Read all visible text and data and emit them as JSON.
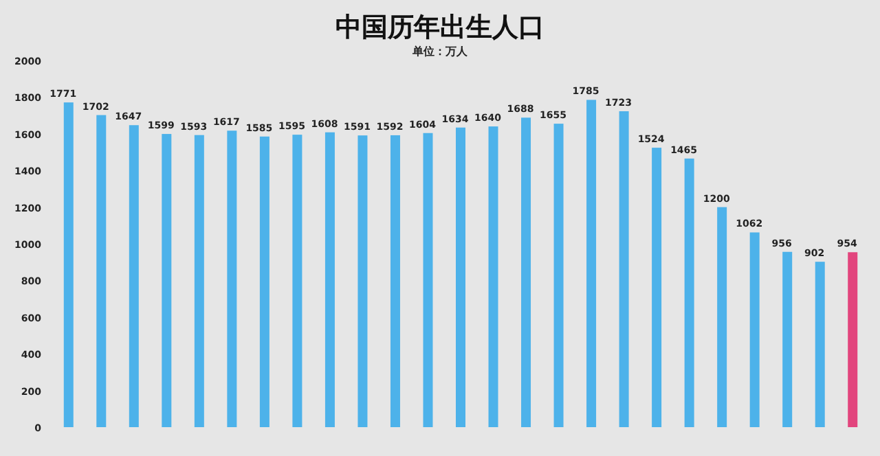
{
  "chart_data": {
    "type": "bar",
    "title": "中国历年出生人口",
    "subtitle": "单位：万人",
    "categories": [
      null,
      null,
      null,
      null,
      null,
      null,
      null,
      null,
      null,
      null,
      null,
      null,
      null,
      null,
      null,
      null,
      null,
      null,
      null,
      null,
      null,
      null,
      null,
      null,
      null
    ],
    "values": [
      1771,
      1702,
      1647,
      1599,
      1593,
      1617,
      1585,
      1595,
      1608,
      1591,
      1592,
      1604,
      1634,
      1640,
      1688,
      1655,
      1785,
      1723,
      1524,
      1465,
      1200,
      1062,
      956,
      902,
      954
    ],
    "colors": [
      "#4db2ea",
      "#4db2ea",
      "#4db2ea",
      "#4db2ea",
      "#4db2ea",
      "#4db2ea",
      "#4db2ea",
      "#4db2ea",
      "#4db2ea",
      "#4db2ea",
      "#4db2ea",
      "#4db2ea",
      "#4db2ea",
      "#4db2ea",
      "#4db2ea",
      "#4db2ea",
      "#4db2ea",
      "#4db2ea",
      "#4db2ea",
      "#4db2ea",
      "#4db2ea",
      "#4db2ea",
      "#4db2ea",
      "#4db2ea",
      "#e2457d"
    ],
    "ylim": [
      0,
      2000
    ],
    "yticks": [
      0,
      200,
      400,
      600,
      800,
      1000,
      1200,
      1400,
      1600,
      1800,
      2000
    ],
    "data_labels": true
  }
}
